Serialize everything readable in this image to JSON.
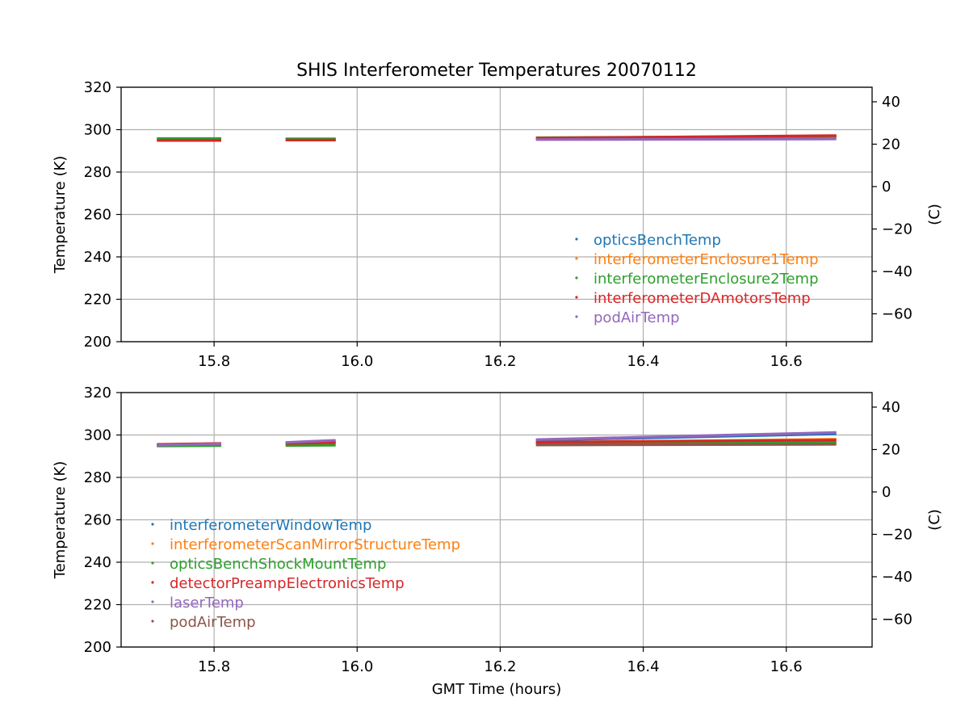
{
  "chart_data": {
    "title": "SHIS Interferometer Temperatures 20070112",
    "type": "scatter",
    "subplots": [
      {
        "id": "top",
        "ylabel": "Temperature (K)",
        "ylabel_right": "(C)",
        "xlabel": "",
        "xlim": [
          15.67,
          16.72
        ],
        "ylim": [
          200,
          320
        ],
        "ylim_right": [
          -73.15,
          46.85
        ],
        "x_ticks": [
          "15.8",
          "16.0",
          "16.2",
          "16.4",
          "16.6"
        ],
        "y_ticks": [
          "200",
          "220",
          "240",
          "260",
          "280",
          "300",
          "320"
        ],
        "y_ticks_right": [
          "−60",
          "−40",
          "−20",
          "0",
          "20",
          "40"
        ],
        "grid": true,
        "legend_position": "lower-right",
        "series": [
          {
            "name": "opticsBenchTemp",
            "color": "#1f77b4",
            "segments": [
              [
                15.72,
                15.81,
                295.3,
                295.3
              ],
              [
                15.9,
                15.97,
                295.3,
                295.3
              ],
              [
                16.25,
                16.67,
                295.8,
                296.6
              ]
            ]
          },
          {
            "name": "interferometerEnclosure1Temp",
            "color": "#ff7f0e",
            "segments": [
              [
                15.72,
                15.81,
                295.6,
                295.6
              ],
              [
                15.9,
                15.97,
                295.6,
                295.6
              ],
              [
                16.25,
                16.67,
                296.0,
                296.8
              ]
            ]
          },
          {
            "name": "interferometerEnclosure2Temp",
            "color": "#2ca02c",
            "segments": [
              [
                15.72,
                15.81,
                295.8,
                295.8
              ],
              [
                15.9,
                15.97,
                295.7,
                295.7
              ],
              [
                16.25,
                16.67,
                296.2,
                296.9
              ]
            ]
          },
          {
            "name": "interferometerDAmotorsTemp",
            "color": "#d62728",
            "segments": [
              [
                15.72,
                15.81,
                294.9,
                294.9
              ],
              [
                15.9,
                15.97,
                295.1,
                295.1
              ],
              [
                16.25,
                16.67,
                296.0,
                297.2
              ]
            ]
          },
          {
            "name": "podAirTemp",
            "color": "#9467bd",
            "segments": [
              [
                16.25,
                16.67,
                295.3,
                295.6
              ]
            ]
          }
        ]
      },
      {
        "id": "bottom",
        "ylabel": "Temperature (K)",
        "ylabel_right": "(C)",
        "xlabel": "GMT Time (hours)",
        "xlim": [
          15.67,
          16.72
        ],
        "ylim": [
          200,
          320
        ],
        "ylim_right": [
          -73.15,
          46.85
        ],
        "x_ticks": [
          "15.8",
          "16.0",
          "16.2",
          "16.4",
          "16.6"
        ],
        "y_ticks": [
          "200",
          "220",
          "240",
          "260",
          "280",
          "300",
          "320"
        ],
        "y_ticks_right": [
          "−60",
          "−40",
          "−20",
          "0",
          "20",
          "40"
        ],
        "grid": true,
        "legend_position": "lower-left",
        "series": [
          {
            "name": "interferometerWindowTemp",
            "color": "#1f77b4",
            "segments": [
              [
                15.72,
                15.81,
                295.0,
                295.6
              ],
              [
                15.9,
                15.97,
                296.0,
                297.0
              ],
              [
                16.25,
                16.67,
                297.5,
                300.5
              ]
            ]
          },
          {
            "name": "interferometerScanMirrorStructureTemp",
            "color": "#ff7f0e",
            "segments": [
              [
                15.72,
                15.81,
                295.4,
                295.6
              ],
              [
                15.9,
                15.97,
                295.8,
                296.2
              ],
              [
                16.25,
                16.67,
                296.5,
                298.0
              ]
            ]
          },
          {
            "name": "opticsBenchShockMountTemp",
            "color": "#2ca02c",
            "segments": [
              [
                15.72,
                15.81,
                294.8,
                295.0
              ],
              [
                15.9,
                15.97,
                295.0,
                295.2
              ],
              [
                16.25,
                16.67,
                296.0,
                296.6
              ]
            ]
          },
          {
            "name": "detectorPreampElectronicsTemp",
            "color": "#d62728",
            "segments": [
              [
                15.72,
                15.81,
                295.6,
                296.0
              ],
              [
                15.9,
                15.97,
                296.0,
                296.4
              ],
              [
                16.25,
                16.67,
                296.6,
                297.6
              ]
            ]
          },
          {
            "name": "laserTemp",
            "color": "#9467bd",
            "segments": [
              [
                15.72,
                15.81,
                295.2,
                295.8
              ],
              [
                15.9,
                15.97,
                296.5,
                297.5
              ],
              [
                16.25,
                16.67,
                297.8,
                301.2
              ]
            ]
          },
          {
            "name": "podAirTemp",
            "color": "#8c564b",
            "segments": [
              [
                16.25,
                16.67,
                295.3,
                295.6
              ]
            ]
          }
        ]
      }
    ]
  }
}
